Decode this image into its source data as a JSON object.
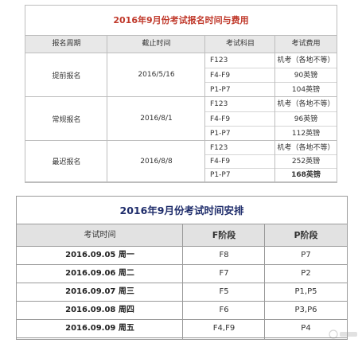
{
  "fees_table": {
    "title": "2016年9月份考试报名时间与费用",
    "headers": [
      "报名周期",
      "截止时间",
      "考试科目",
      "考试费用"
    ],
    "groups": [
      {
        "period": "提前报名",
        "deadline": "2016/5/16",
        "rows": [
          {
            "subject": "F123",
            "fee": "机考（各地不等）"
          },
          {
            "subject": "F4-F9",
            "fee": "90英镑"
          },
          {
            "subject": "P1-P7",
            "fee": "104英镑"
          }
        ]
      },
      {
        "period": "常规报名",
        "deadline": "2016/8/1",
        "rows": [
          {
            "subject": "F123",
            "fee": "机考（各地不等）"
          },
          {
            "subject": "F4-F9",
            "fee": "96英镑"
          },
          {
            "subject": "P1-P7",
            "fee": "112英镑"
          }
        ]
      },
      {
        "period": "最迟报名",
        "deadline": "2016/8/8",
        "rows": [
          {
            "subject": "F123",
            "fee": "机考（各地不等）"
          },
          {
            "subject": "F4-F9",
            "fee": "252英镑"
          },
          {
            "subject": "P1-P7",
            "fee": "168英镑"
          }
        ]
      }
    ]
  },
  "schedule_table": {
    "title": "2016年9月份考试时间安排",
    "headers": [
      "考试时间",
      "F阶段",
      "P阶段"
    ],
    "rows": [
      {
        "date": "2016.09.05 周一",
        "f": "F8",
        "p": "P7"
      },
      {
        "date": "2016.09.06 周二",
        "f": "F7",
        "p": "P2"
      },
      {
        "date": "2016.09.07 周三",
        "f": "F5",
        "p": "P1,P5"
      },
      {
        "date": "2016.09.08 周四",
        "f": "F6",
        "p": "P3,P6"
      },
      {
        "date": "2016.09.09 周五",
        "f": "F4,F9",
        "p": "P4"
      }
    ]
  },
  "colors": {
    "fees_title": "#c0392b",
    "schedule_title": "#1f2d6b",
    "header_bg": "#e8e8e8"
  }
}
